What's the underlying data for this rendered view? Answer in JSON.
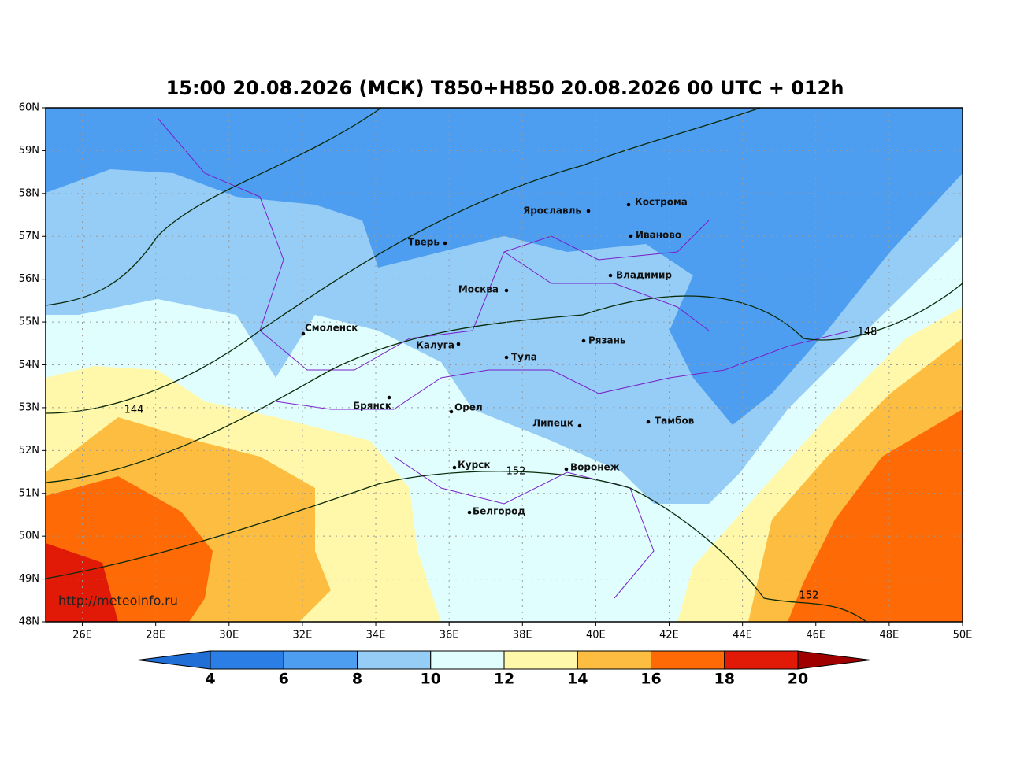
{
  "title": "15:00 20.08.2026 (МСК) T850+H850 20.08.2026 00 UTC + 012h",
  "map": {
    "lat_ticks": [
      {
        "value": 48,
        "label": "48N"
      },
      {
        "value": 49,
        "label": "49N"
      },
      {
        "value": 50,
        "label": "50N"
      },
      {
        "value": 51,
        "label": "51N"
      },
      {
        "value": 52,
        "label": "52N"
      },
      {
        "value": 53,
        "label": "53N"
      },
      {
        "value": 54,
        "label": "54N"
      },
      {
        "value": 55,
        "label": "55N"
      },
      {
        "value": 56,
        "label": "56N"
      },
      {
        "value": 57,
        "label": "57N"
      },
      {
        "value": 58,
        "label": "58N"
      },
      {
        "value": 59,
        "label": "59N"
      },
      {
        "value": 60,
        "label": "60N"
      }
    ],
    "lon_ticks": [
      {
        "value": 26,
        "label": "26E"
      },
      {
        "value": 28,
        "label": "28E"
      },
      {
        "value": 30,
        "label": "30E"
      },
      {
        "value": 32,
        "label": "32E"
      },
      {
        "value": 34,
        "label": "34E"
      },
      {
        "value": 36,
        "label": "36E"
      },
      {
        "value": 38,
        "label": "38E"
      },
      {
        "value": 40,
        "label": "40E"
      },
      {
        "value": 42,
        "label": "42E"
      },
      {
        "value": 44,
        "label": "44E"
      },
      {
        "value": 46,
        "label": "46E"
      },
      {
        "value": 48,
        "label": "48E"
      },
      {
        "value": 50,
        "label": "50E"
      }
    ]
  },
  "cities": [
    "Кострома",
    "Ярославль",
    "Иваново",
    "Тверь",
    "Владимир",
    "Москва",
    "Смоленск",
    "Калуга",
    "Рязань",
    "Тула",
    "Брянск",
    "Орел",
    "Липецк",
    "Тамбов",
    "Курск",
    "Воронеж",
    "Белгород"
  ],
  "contour_labels": [
    144,
    148,
    152,
    152
  ],
  "url": "http://meteoinfo.ru",
  "colorbar": {
    "levels": [
      4,
      6,
      8,
      10,
      12,
      14,
      16,
      18,
      20
    ],
    "colors": [
      "#1f6fd6",
      "#2b7ee6",
      "#4d9ef0",
      "#96cdf6",
      "#e0fefe",
      "#fff8aa",
      "#fdbd40",
      "#fd6a06",
      "#e01a07",
      "#a00000"
    ]
  }
}
